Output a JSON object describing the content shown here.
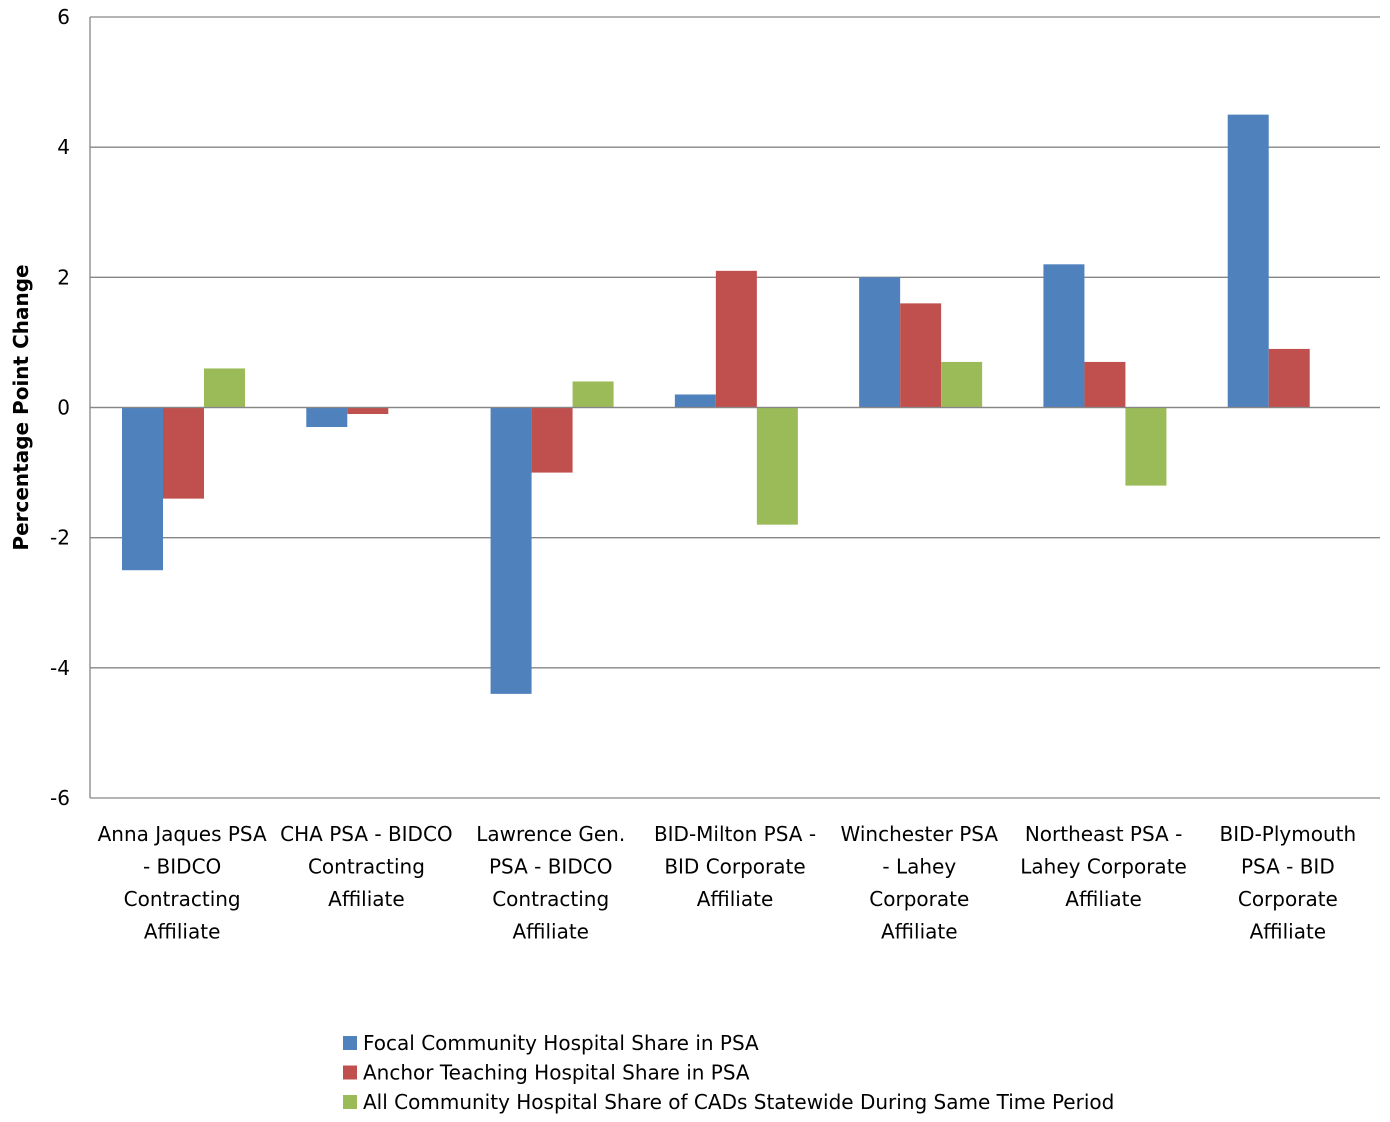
{
  "chart_data": {
    "type": "bar",
    "title": "",
    "xlabel": "",
    "ylabel": "Percentage Point Change",
    "ylim": [
      -6,
      6
    ],
    "yticks": [
      -6,
      -4,
      -2,
      0,
      2,
      4,
      6
    ],
    "grid": true,
    "legend_position": "bottom",
    "categories": [
      [
        "Anna Jaques PSA",
        "- BIDCO",
        "Contracting",
        "Affiliate"
      ],
      [
        "CHA PSA - BIDCO",
        "Contracting",
        "Affiliate"
      ],
      [
        "Lawrence Gen.",
        "PSA - BIDCO",
        "Contracting",
        "Affiliate"
      ],
      [
        "BID-Milton PSA -",
        "BID Corporate",
        "Affiliate"
      ],
      [
        "Winchester PSA",
        "- Lahey",
        "Corporate",
        "Affiliate"
      ],
      [
        "Northeast PSA -",
        "Lahey Corporate",
        "Affiliate"
      ],
      [
        "BID-Plymouth",
        "PSA - BID",
        "Corporate",
        "Affiliate"
      ]
    ],
    "series": [
      {
        "name": "Focal Community Hospital Share in PSA",
        "color": "#4F81BD",
        "values": [
          -2.5,
          -0.3,
          -4.4,
          0.2,
          2.0,
          2.2,
          4.5
        ]
      },
      {
        "name": "Anchor Teaching Hospital Share in PSA",
        "color": "#C0504D",
        "values": [
          -1.4,
          -0.1,
          -1.0,
          2.1,
          1.6,
          0.7,
          0.9
        ]
      },
      {
        "name": "All Community Hospital Share of CADs Statewide During Same Time Period",
        "color": "#9BBB59",
        "values": [
          0.6,
          0.0,
          0.4,
          -1.8,
          0.7,
          -1.2,
          0.0
        ]
      }
    ],
    "colors": {
      "axis": "#868686",
      "grid": "#868686"
    }
  }
}
